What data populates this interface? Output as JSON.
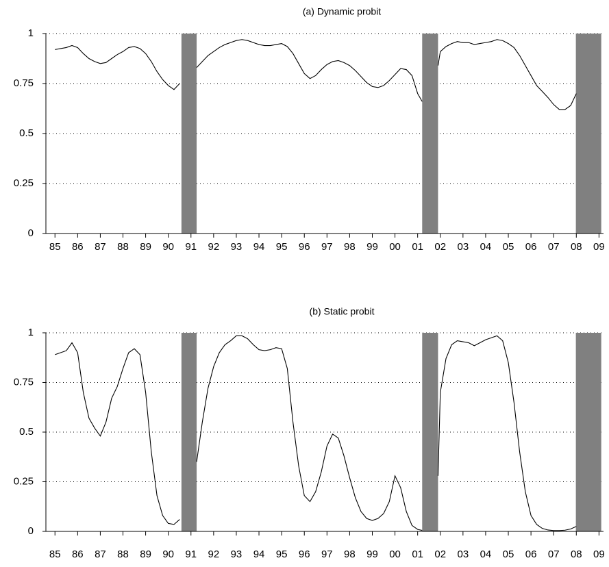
{
  "chart_data": [
    {
      "type": "line",
      "title": "(a) Dynamic probit",
      "x": [
        1985.0,
        1985.25,
        1985.5,
        1985.75,
        1986.0,
        1986.25,
        1986.5,
        1986.75,
        1987.0,
        1987.25,
        1987.5,
        1987.75,
        1988.0,
        1988.25,
        1988.5,
        1988.75,
        1989.0,
        1989.25,
        1989.5,
        1989.75,
        1990.0,
        1990.25,
        1990.5,
        1990.9,
        1991.25,
        1991.5,
        1991.75,
        1992.0,
        1992.25,
        1992.5,
        1992.75,
        1993.0,
        1993.25,
        1993.5,
        1993.75,
        1994.0,
        1994.25,
        1994.5,
        1994.75,
        1995.0,
        1995.25,
        1995.5,
        1995.75,
        1996.0,
        1996.25,
        1996.5,
        1996.75,
        1997.0,
        1997.25,
        1997.5,
        1997.75,
        1998.0,
        1998.25,
        1998.5,
        1998.75,
        1999.0,
        1999.25,
        1999.5,
        1999.75,
        2000.0,
        2000.25,
        2000.5,
        2000.75,
        2001.0,
        2001.2,
        2001.5,
        2001.9,
        2002.0,
        2002.25,
        2002.5,
        2002.75,
        2003.0,
        2003.25,
        2003.5,
        2003.75,
        2004.0,
        2004.25,
        2004.5,
        2004.75,
        2005.0,
        2005.25,
        2005.5,
        2005.75,
        2006.0,
        2006.25,
        2006.5,
        2006.75,
        2007.0,
        2007.25,
        2007.5,
        2007.75,
        2008.0
      ],
      "series": [
        {
          "color": "#000000",
          "values": [
            0.92,
            0.925,
            0.93,
            0.94,
            0.93,
            0.9,
            0.875,
            0.86,
            0.85,
            0.855,
            0.875,
            0.895,
            0.91,
            0.93,
            0.935,
            0.925,
            0.9,
            0.86,
            0.81,
            0.77,
            0.74,
            0.72,
            0.75,
            null,
            0.83,
            0.86,
            0.89,
            0.91,
            0.93,
            0.945,
            0.955,
            0.965,
            0.97,
            0.965,
            0.955,
            0.945,
            0.94,
            0.94,
            0.945,
            0.95,
            0.935,
            0.9,
            0.85,
            0.8,
            0.775,
            0.79,
            0.82,
            0.845,
            0.86,
            0.865,
            0.855,
            0.84,
            0.815,
            0.785,
            0.755,
            0.735,
            0.73,
            0.74,
            0.765,
            0.795,
            0.825,
            0.82,
            0.79,
            0.7,
            0.66,
            null,
            0.84,
            0.91,
            0.935,
            0.95,
            0.96,
            0.955,
            0.955,
            0.945,
            0.95,
            0.955,
            0.96,
            0.97,
            0.965,
            0.95,
            0.93,
            0.89,
            0.84,
            0.79,
            0.74,
            0.71,
            0.68,
            0.645,
            0.62,
            0.62,
            0.64,
            0.7
          ]
        }
      ],
      "recessions": [
        {
          "start": 1990.58,
          "end": 1991.25
        },
        {
          "start": 2001.2,
          "end": 2001.9
        },
        {
          "start": 2007.98,
          "end": 2009.1
        }
      ],
      "shade_color": "#808080",
      "xlim": [
        1984.6,
        2009.2
      ],
      "xticks": [
        {
          "value": 1985,
          "label": "85"
        },
        {
          "value": 1986,
          "label": "86"
        },
        {
          "value": 1987,
          "label": "87"
        },
        {
          "value": 1988,
          "label": "88"
        },
        {
          "value": 1989,
          "label": "89"
        },
        {
          "value": 1990,
          "label": "90"
        },
        {
          "value": 1991,
          "label": "91"
        },
        {
          "value": 1992,
          "label": "92"
        },
        {
          "value": 1993,
          "label": "93"
        },
        {
          "value": 1994,
          "label": "94"
        },
        {
          "value": 1995,
          "label": "95"
        },
        {
          "value": 1996,
          "label": "96"
        },
        {
          "value": 1997,
          "label": "97"
        },
        {
          "value": 1998,
          "label": "98"
        },
        {
          "value": 1999,
          "label": "99"
        },
        {
          "value": 2000,
          "label": "00"
        },
        {
          "value": 2001,
          "label": "01"
        },
        {
          "value": 2002,
          "label": "02"
        },
        {
          "value": 2003,
          "label": "03"
        },
        {
          "value": 2004,
          "label": "04"
        },
        {
          "value": 2005,
          "label": "05"
        },
        {
          "value": 2006,
          "label": "06"
        },
        {
          "value": 2007,
          "label": "07"
        },
        {
          "value": 2008,
          "label": "08"
        },
        {
          "value": 2009,
          "label": "09"
        }
      ],
      "ylim": [
        0,
        1
      ],
      "yticks": [
        0,
        0.25,
        0.5,
        0.75,
        1
      ],
      "grid": true
    },
    {
      "type": "line",
      "title": "(b) Static probit",
      "x": [
        1985.0,
        1985.25,
        1985.5,
        1985.75,
        1986.0,
        1986.25,
        1986.5,
        1986.75,
        1987.0,
        1987.25,
        1987.5,
        1987.75,
        1988.0,
        1988.25,
        1988.5,
        1988.75,
        1989.0,
        1989.25,
        1989.5,
        1989.75,
        1990.0,
        1990.25,
        1990.5,
        1990.9,
        1991.25,
        1991.5,
        1991.75,
        1992.0,
        1992.25,
        1992.5,
        1992.75,
        1993.0,
        1993.25,
        1993.5,
        1993.75,
        1994.0,
        1994.25,
        1994.5,
        1994.75,
        1995.0,
        1995.25,
        1995.5,
        1995.75,
        1996.0,
        1996.25,
        1996.5,
        1996.75,
        1997.0,
        1997.25,
        1997.5,
        1997.75,
        1998.0,
        1998.25,
        1998.5,
        1998.75,
        1999.0,
        1999.25,
        1999.5,
        1999.75,
        2000.0,
        2000.25,
        2000.5,
        2000.75,
        2001.0,
        2001.2,
        2001.5,
        2001.9,
        2002.0,
        2002.25,
        2002.5,
        2002.75,
        2003.0,
        2003.25,
        2003.5,
        2003.75,
        2004.0,
        2004.25,
        2004.5,
        2004.75,
        2005.0,
        2005.25,
        2005.5,
        2005.75,
        2006.0,
        2006.25,
        2006.5,
        2006.75,
        2007.0,
        2007.25,
        2007.5,
        2007.75,
        2008.0
      ],
      "series": [
        {
          "color": "#000000",
          "values": [
            0.89,
            0.9,
            0.91,
            0.95,
            0.9,
            0.7,
            0.57,
            0.52,
            0.48,
            0.55,
            0.67,
            0.73,
            0.82,
            0.9,
            0.92,
            0.89,
            0.7,
            0.4,
            0.18,
            0.08,
            0.04,
            0.035,
            0.06,
            null,
            0.35,
            0.55,
            0.72,
            0.83,
            0.9,
            0.94,
            0.96,
            0.985,
            0.985,
            0.97,
            0.94,
            0.915,
            0.91,
            0.915,
            0.925,
            0.92,
            0.82,
            0.55,
            0.33,
            0.18,
            0.15,
            0.2,
            0.3,
            0.43,
            0.49,
            0.47,
            0.38,
            0.27,
            0.17,
            0.1,
            0.065,
            0.055,
            0.065,
            0.09,
            0.15,
            0.28,
            0.22,
            0.1,
            0.03,
            0.01,
            0.005,
            null,
            0.28,
            0.7,
            0.87,
            0.94,
            0.96,
            0.955,
            0.95,
            0.935,
            0.95,
            0.965,
            0.975,
            0.985,
            0.96,
            0.85,
            0.65,
            0.4,
            0.2,
            0.08,
            0.035,
            0.015,
            0.007,
            0.004,
            0.004,
            0.006,
            0.012,
            0.025
          ]
        }
      ],
      "recessions": [
        {
          "start": 1990.58,
          "end": 1991.25
        },
        {
          "start": 2001.2,
          "end": 2001.9
        },
        {
          "start": 2007.98,
          "end": 2009.1
        }
      ],
      "shade_color": "#808080",
      "xlim": [
        1984.6,
        2009.2
      ],
      "xticks": [
        {
          "value": 1985,
          "label": "85"
        },
        {
          "value": 1986,
          "label": "86"
        },
        {
          "value": 1987,
          "label": "87"
        },
        {
          "value": 1988,
          "label": "88"
        },
        {
          "value": 1989,
          "label": "89"
        },
        {
          "value": 1990,
          "label": "90"
        },
        {
          "value": 1991,
          "label": "91"
        },
        {
          "value": 1992,
          "label": "92"
        },
        {
          "value": 1993,
          "label": "93"
        },
        {
          "value": 1994,
          "label": "94"
        },
        {
          "value": 1995,
          "label": "95"
        },
        {
          "value": 1996,
          "label": "96"
        },
        {
          "value": 1997,
          "label": "97"
        },
        {
          "value": 1998,
          "label": "98"
        },
        {
          "value": 1999,
          "label": "99"
        },
        {
          "value": 2000,
          "label": "00"
        },
        {
          "value": 2001,
          "label": "01"
        },
        {
          "value": 2002,
          "label": "02"
        },
        {
          "value": 2003,
          "label": "03"
        },
        {
          "value": 2004,
          "label": "04"
        },
        {
          "value": 2005,
          "label": "05"
        },
        {
          "value": 2006,
          "label": "06"
        },
        {
          "value": 2007,
          "label": "07"
        },
        {
          "value": 2008,
          "label": "08"
        },
        {
          "value": 2009,
          "label": "09"
        }
      ],
      "ylim": [
        0,
        1
      ],
      "yticks": [
        0,
        0.25,
        0.5,
        0.75,
        1
      ],
      "grid": true
    }
  ]
}
